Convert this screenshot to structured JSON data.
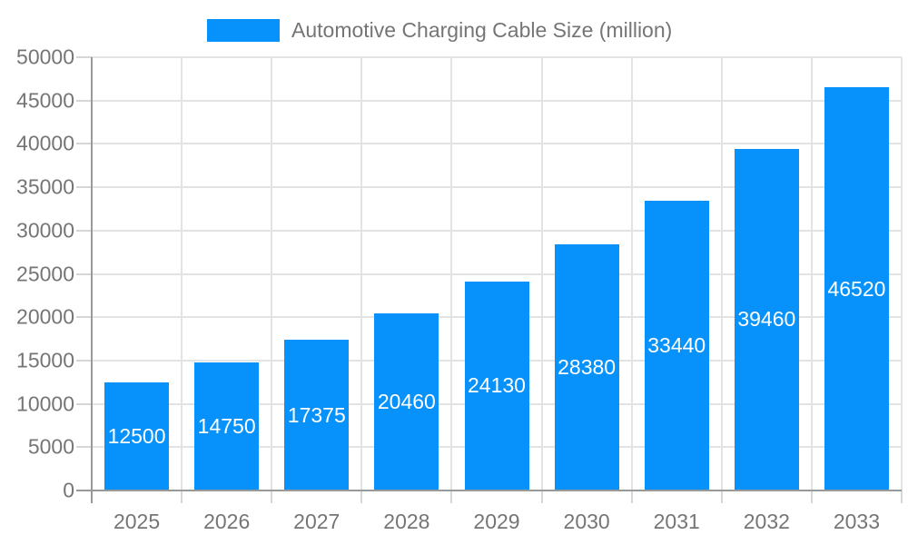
{
  "legend": {
    "label": "Automotive Charging Cable Size (million)"
  },
  "chart_data": {
    "type": "bar",
    "title": "Automotive Charging Cable Size (million)",
    "xlabel": "",
    "ylabel": "",
    "categories": [
      "2025",
      "2026",
      "2027",
      "2028",
      "2029",
      "2030",
      "2031",
      "2032",
      "2033"
    ],
    "values": [
      12500,
      14750,
      17375,
      20460,
      24130,
      28380,
      33440,
      39460,
      46520
    ],
    "ylim": [
      0,
      50000
    ],
    "yticks": [
      0,
      5000,
      10000,
      15000,
      20000,
      25000,
      30000,
      35000,
      40000,
      45000,
      50000
    ],
    "grid": true,
    "legend_position": "top",
    "bar_color": "#0691FB",
    "bar_label_color": "#ffffff",
    "grid_color": "#e3e3e3",
    "tick_color": "#d6d6d6",
    "axis_color": "#999999",
    "text_color": "#757575"
  }
}
